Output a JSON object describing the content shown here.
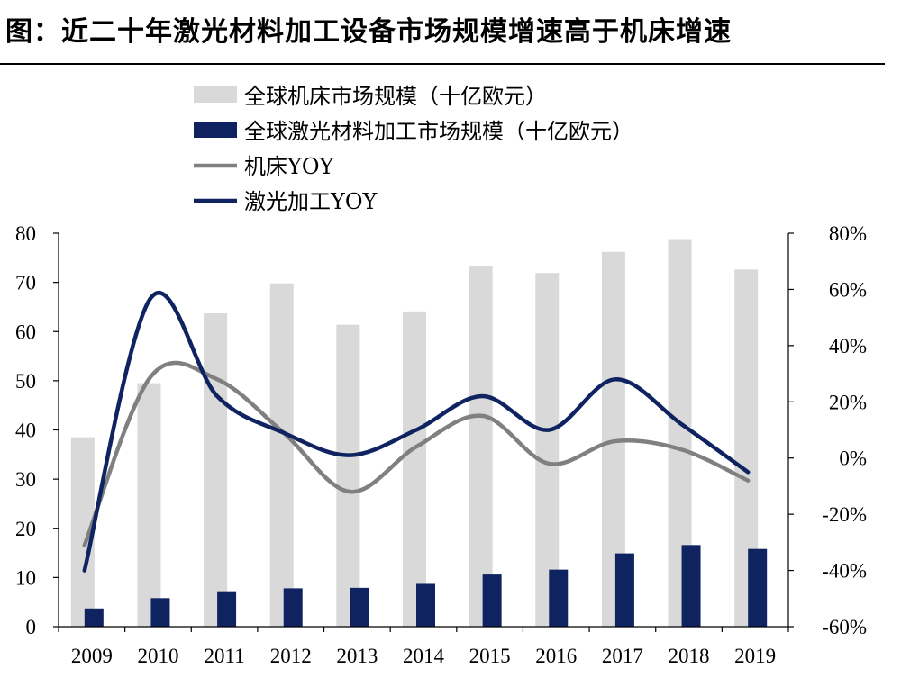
{
  "header": {
    "title": "图：近二十年激光材料加工设备市场规模增速高于机床增速"
  },
  "colors": {
    "machine_bar": "#d9d9d9",
    "laser_bar": "#0f2360",
    "machine_line": "#808080",
    "laser_line": "#0f2360",
    "axis": "#000000"
  },
  "chart_data": {
    "type": "bar",
    "title": "",
    "categories": [
      "2009",
      "2010",
      "2011",
      "2012",
      "2013",
      "2014",
      "2015",
      "2016",
      "2017",
      "2018",
      "2019"
    ],
    "series": [
      {
        "name": "全球机床市场规模（十亿欧元）",
        "kind": "bar",
        "axis": "left",
        "values": [
          38.5,
          49.5,
          63.7,
          69.8,
          61.4,
          64.1,
          73.4,
          71.9,
          76.2,
          78.8,
          72.6
        ]
      },
      {
        "name": "全球激光材料加工市场规模（十亿欧元）",
        "kind": "bar",
        "axis": "left",
        "values": [
          3.7,
          5.8,
          7.2,
          7.8,
          7.9,
          8.7,
          10.6,
          11.6,
          14.9,
          16.6,
          15.8
        ]
      },
      {
        "name": "机床YOY",
        "kind": "line",
        "axis": "right",
        "values": [
          -31,
          29,
          28,
          9,
          -12,
          4,
          15,
          -2,
          6,
          3,
          -8
        ]
      },
      {
        "name": "激光加工YOY",
        "kind": "line",
        "axis": "right",
        "values": [
          -40,
          57,
          22,
          9,
          1,
          10,
          22,
          10,
          28,
          12,
          -5
        ]
      }
    ],
    "left_axis": {
      "min": 0,
      "max": 80,
      "step": 10,
      "tick_labels": [
        "0",
        "10",
        "20",
        "30",
        "40",
        "50",
        "60",
        "70",
        "80"
      ]
    },
    "right_axis": {
      "min": -60,
      "max": 80,
      "step": 20,
      "tick_labels": [
        "-60%",
        "-40%",
        "-20%",
        "0%",
        "20%",
        "40%",
        "60%",
        "80%"
      ]
    },
    "xlabel": "",
    "ylabel": "",
    "grid": false,
    "legend_position": "top-left"
  }
}
